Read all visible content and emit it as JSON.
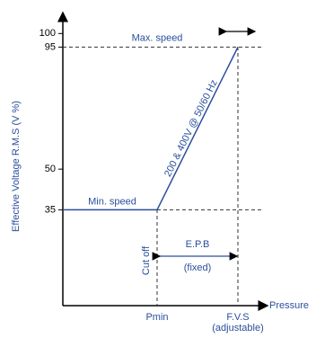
{
  "y_axis": {
    "label": "Effective Voltage R.M.S (V %)",
    "ticks": [
      35,
      50,
      95,
      100
    ]
  },
  "x_axis": {
    "label": "Pressure",
    "points": [
      {
        "label": "Pmin"
      },
      {
        "label": "F.V.S",
        "sublabel": "(adjustable)"
      }
    ]
  },
  "curve": {
    "min_level": 35,
    "max_level": 95,
    "min_label": "Min. speed",
    "max_label": "Max. speed",
    "slope_label": "200 & 400V @ 50/60 Hz"
  },
  "annotations": {
    "cut_off": "Cut off",
    "band": "E.P.B",
    "band_note": "(fixed)"
  }
}
